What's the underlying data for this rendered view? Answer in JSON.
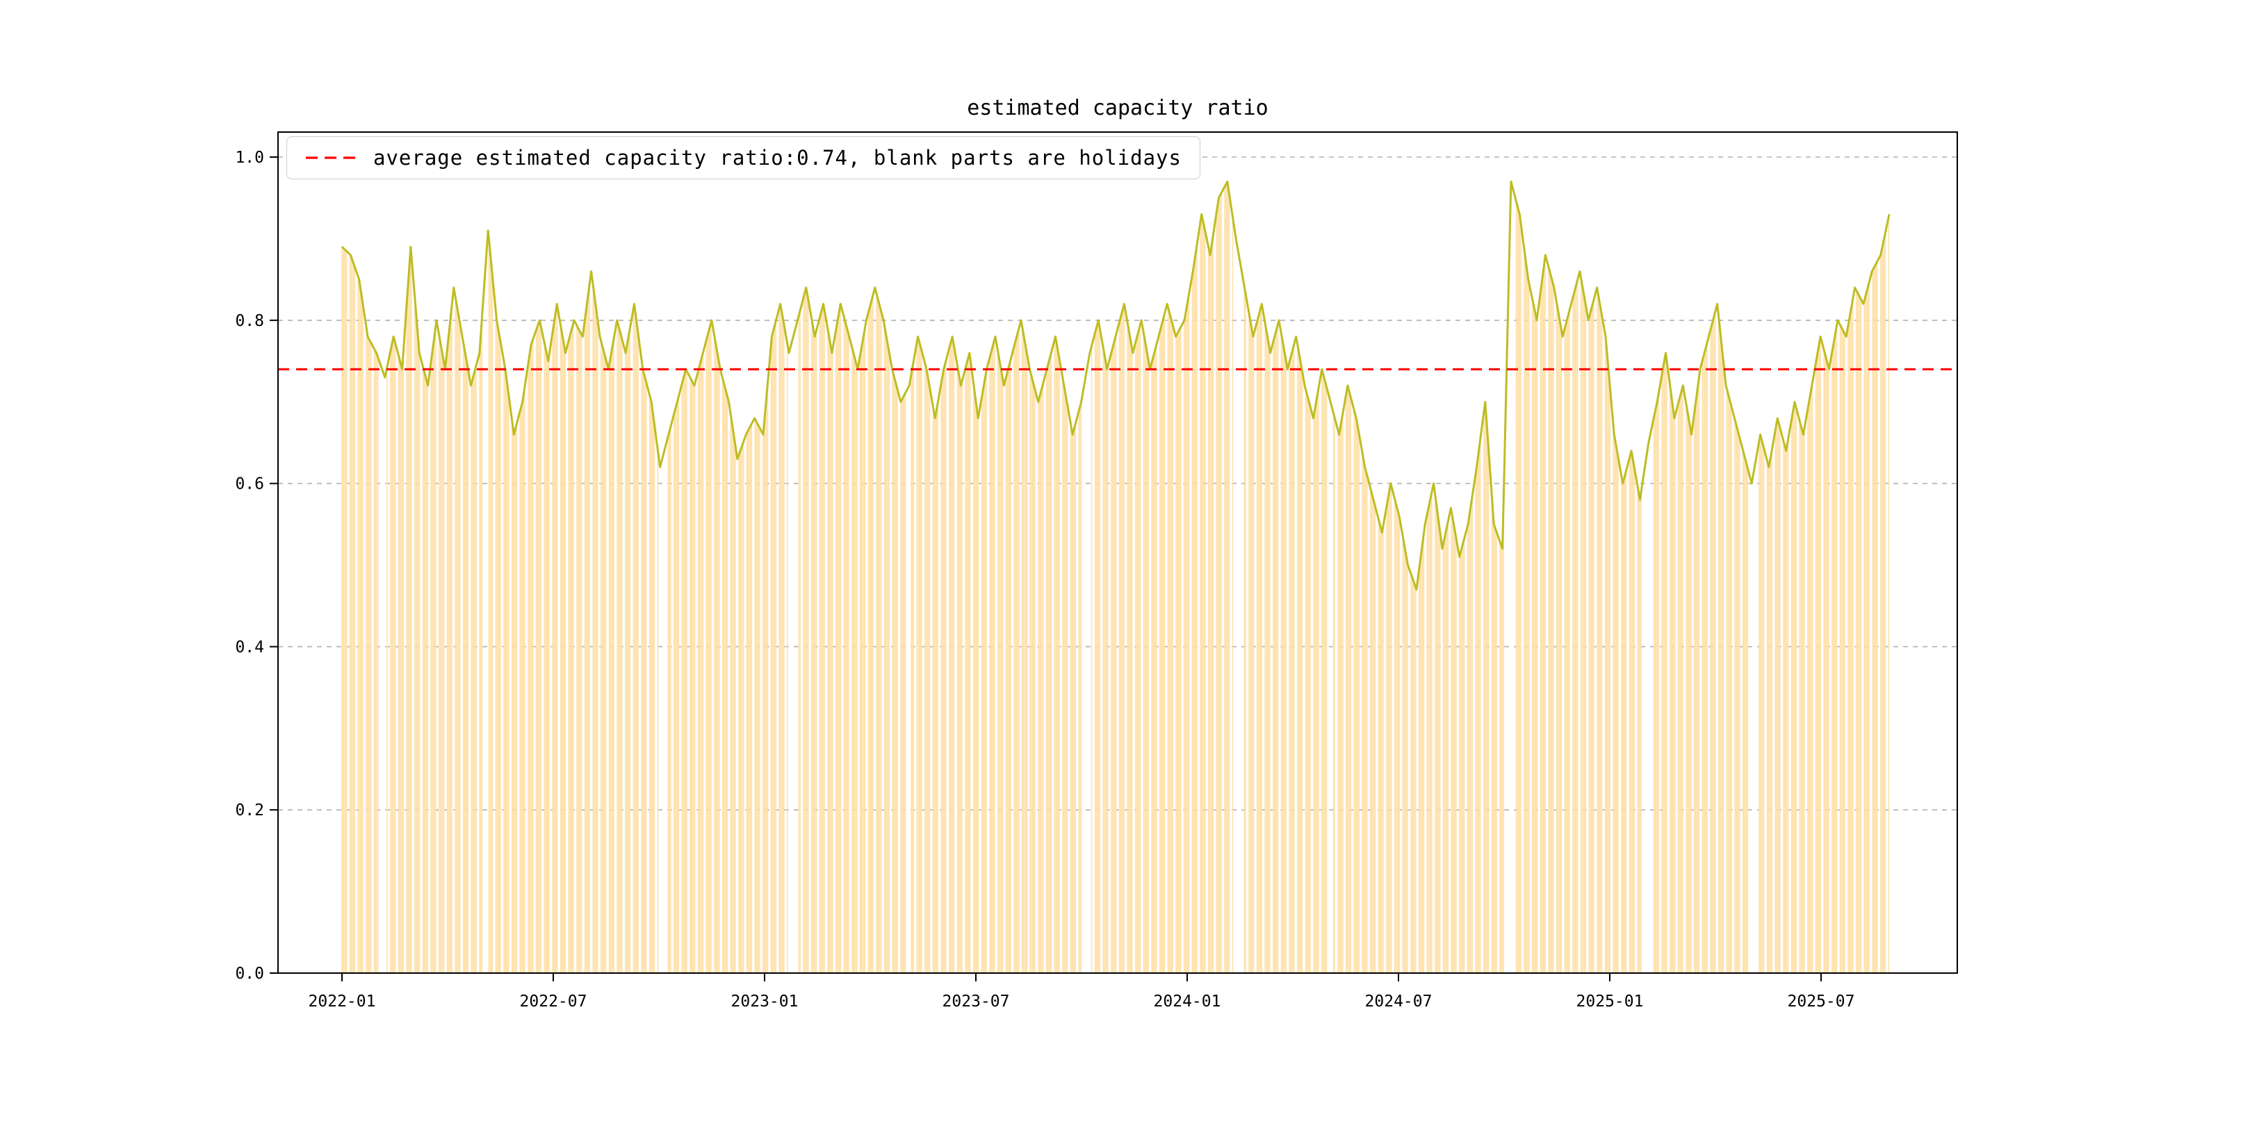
{
  "chart_data": {
    "type": "bar",
    "title": "estimated capacity ratio",
    "legend": [
      {
        "label": "average estimated capacity ratio:0.74, blank parts are holidays",
        "color": "#ff0000",
        "style": "dashed"
      }
    ],
    "series": [
      {
        "name": "daily estimated capacity ratio bars",
        "color": "#ffdfa6"
      },
      {
        "name": "estimated capacity ratio line",
        "color": "#bcbd22"
      }
    ],
    "average_line": {
      "value": 0.74,
      "color": "#ff0000",
      "style": "dashed"
    },
    "x_start": "2022-01",
    "x_end": "2025-09",
    "sample_interval_days": 7.43,
    "values": [
      0.89,
      0.88,
      0.85,
      0.78,
      0.76,
      0.73,
      0.78,
      0.74,
      0.89,
      0.76,
      0.72,
      0.8,
      0.74,
      0.84,
      0.78,
      0.72,
      0.76,
      0.91,
      0.8,
      0.74,
      0.66,
      0.7,
      0.77,
      0.8,
      0.75,
      0.82,
      0.76,
      0.8,
      0.78,
      0.86,
      0.78,
      0.74,
      0.8,
      0.76,
      0.82,
      0.74,
      0.7,
      0.62,
      0.66,
      0.7,
      0.74,
      0.72,
      0.76,
      0.8,
      0.74,
      0.7,
      0.63,
      0.66,
      0.68,
      0.66,
      0.78,
      0.82,
      0.76,
      0.8,
      0.84,
      0.78,
      0.82,
      0.76,
      0.82,
      0.78,
      0.74,
      0.8,
      0.84,
      0.8,
      0.74,
      0.7,
      0.72,
      0.78,
      0.74,
      0.68,
      0.74,
      0.78,
      0.72,
      0.76,
      0.68,
      0.74,
      0.78,
      0.72,
      0.76,
      0.8,
      0.74,
      0.7,
      0.74,
      0.78,
      0.72,
      0.66,
      0.7,
      0.76,
      0.8,
      0.74,
      0.78,
      0.82,
      0.76,
      0.8,
      0.74,
      0.78,
      0.82,
      0.78,
      0.8,
      0.86,
      0.93,
      0.88,
      0.95,
      0.97,
      0.9,
      0.84,
      0.78,
      0.82,
      0.76,
      0.8,
      0.74,
      0.78,
      0.72,
      0.68,
      0.74,
      0.7,
      0.66,
      0.72,
      0.68,
      0.62,
      0.58,
      0.54,
      0.6,
      0.56,
      0.5,
      0.47,
      0.55,
      0.6,
      0.52,
      0.57,
      0.51,
      0.55,
      0.62,
      0.7,
      0.55,
      0.52,
      0.97,
      0.93,
      0.85,
      0.8,
      0.88,
      0.84,
      0.78,
      0.82,
      0.86,
      0.8,
      0.84,
      0.78,
      0.66,
      0.6,
      0.64,
      0.58,
      0.65,
      0.7,
      0.76,
      0.68,
      0.72,
      0.66,
      0.74,
      0.78,
      0.82,
      0.72,
      0.68,
      0.64,
      0.6,
      0.66,
      0.62,
      0.68,
      0.64,
      0.7,
      0.66,
      0.72,
      0.78,
      0.74,
      0.8,
      0.78,
      0.84,
      0.82,
      0.86,
      0.88,
      0.93
    ],
    "ylim": [
      0.0,
      1.03
    ],
    "yticks": [
      0.0,
      0.2,
      0.4,
      0.6,
      0.8,
      1.0
    ],
    "ytick_labels": [
      "0.0",
      "0.2",
      "0.4",
      "0.6",
      "0.8",
      "1.0"
    ],
    "xtick_labels": [
      "2022-01",
      "2022-07",
      "2023-01",
      "2023-07",
      "2024-01",
      "2024-07",
      "2025-01",
      "2025-07"
    ],
    "xtick_month_offsets": [
      0,
      6,
      12,
      18,
      24,
      30,
      36,
      42
    ],
    "grid": {
      "axis": "y",
      "style": "dashed",
      "color": "#b0b0b0",
      "on": true
    },
    "legend_position": "upper left",
    "holidays": {
      "weekend_days": [
        5,
        6
      ],
      "long_gaps_month_offsets": [
        [
          1.02,
          1.28
        ],
        [
          4.0,
          4.15
        ],
        [
          9.0,
          9.26
        ],
        [
          12.65,
          12.95
        ],
        [
          16.0,
          16.15
        ],
        [
          21.0,
          21.26
        ],
        [
          25.3,
          25.6
        ],
        [
          28.0,
          28.15
        ],
        [
          33.0,
          33.26
        ],
        [
          36.9,
          37.2
        ],
        [
          40.0,
          40.15
        ]
      ]
    }
  }
}
